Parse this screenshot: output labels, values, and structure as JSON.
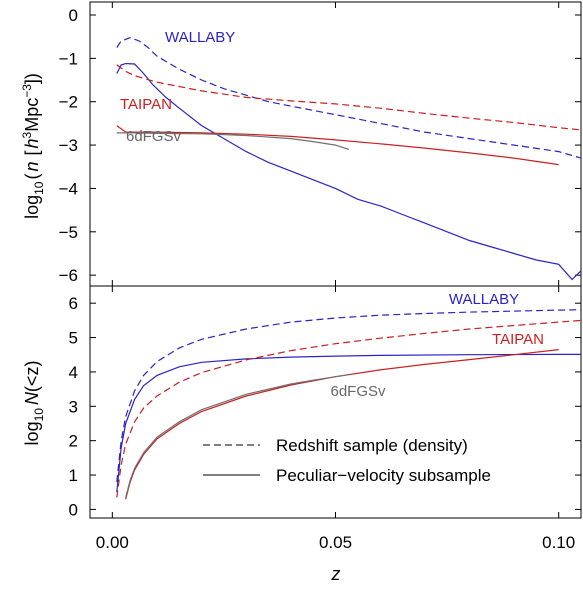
{
  "chart_data": [
    {
      "panel": "top",
      "type": "line",
      "ylabel_parts": {
        "base": "log",
        "sub": "10",
        "open": "(",
        "var": "n",
        "bracket_open": "[",
        "hvar": "h",
        "hexp": "3",
        "unit": "Mpc",
        "uexp": "−3",
        "close": "])"
      },
      "xlim": [
        -0.005,
        0.105
      ],
      "ylim": [
        -6.25,
        0.3
      ],
      "yticks": [
        "0",
        "−1",
        "−2",
        "−3",
        "−4",
        "−5",
        "−6"
      ],
      "ytick_values": [
        0,
        -1,
        -2,
        -3,
        -4,
        -5,
        -6
      ],
      "labels": {
        "wallaby": "WALLABY",
        "taipan": "TAIPAN",
        "sixdf": "6dFGSv"
      },
      "series": [
        {
          "key": "wallaby_redshift",
          "color": "#2a24c8",
          "dashed": true,
          "x": [
            0.001,
            0.002,
            0.004,
            0.006,
            0.008,
            0.01,
            0.015,
            0.02,
            0.025,
            0.03,
            0.035,
            0.04,
            0.05,
            0.06,
            0.07,
            0.08,
            0.09,
            0.1,
            0.105
          ],
          "y": [
            -0.75,
            -0.6,
            -0.52,
            -0.6,
            -0.75,
            -0.95,
            -1.25,
            -1.5,
            -1.7,
            -1.85,
            -2.0,
            -2.1,
            -2.3,
            -2.5,
            -2.7,
            -2.85,
            -3.0,
            -3.15,
            -3.3
          ]
        },
        {
          "key": "wallaby_pv",
          "color": "#2a24c8",
          "dashed": false,
          "x": [
            0.001,
            0.002,
            0.003,
            0.005,
            0.007,
            0.009,
            0.012,
            0.015,
            0.02,
            0.025,
            0.03,
            0.035,
            0.04,
            0.045,
            0.05,
            0.055,
            0.06,
            0.065,
            0.07,
            0.075,
            0.08,
            0.085,
            0.09,
            0.095,
            0.1,
            0.103,
            0.105
          ],
          "y": [
            -1.35,
            -1.15,
            -1.12,
            -1.13,
            -1.35,
            -1.6,
            -1.9,
            -2.15,
            -2.55,
            -2.85,
            -3.15,
            -3.4,
            -3.6,
            -3.8,
            -4.0,
            -4.25,
            -4.4,
            -4.6,
            -4.8,
            -5.0,
            -5.2,
            -5.35,
            -5.5,
            -5.65,
            -5.75,
            -6.1,
            -5.9
          ]
        },
        {
          "key": "taipan_redshift",
          "color": "#cc1f1f",
          "dashed": true,
          "x": [
            0.001,
            0.003,
            0.005,
            0.01,
            0.02,
            0.03,
            0.04,
            0.05,
            0.06,
            0.07,
            0.08,
            0.09,
            0.1,
            0.105
          ],
          "y": [
            -1.15,
            -1.3,
            -1.4,
            -1.55,
            -1.75,
            -1.9,
            -1.98,
            -2.05,
            -2.15,
            -2.27,
            -2.38,
            -2.48,
            -2.6,
            -2.65
          ]
        },
        {
          "key": "taipan_pv",
          "color": "#cc1f1f",
          "dashed": false,
          "x": [
            0.001,
            0.003,
            0.006,
            0.01,
            0.02,
            0.03,
            0.04,
            0.05,
            0.06,
            0.07,
            0.08,
            0.09,
            0.1
          ],
          "y": [
            -2.55,
            -2.7,
            -2.7,
            -2.7,
            -2.72,
            -2.75,
            -2.8,
            -2.88,
            -2.97,
            -3.07,
            -3.18,
            -3.3,
            -3.45
          ]
        },
        {
          "key": "sixdf_pv",
          "color": "#707070",
          "dashed": false,
          "x": [
            0.001,
            0.005,
            0.01,
            0.02,
            0.03,
            0.04,
            0.045,
            0.05,
            0.053
          ],
          "y": [
            -2.72,
            -2.72,
            -2.73,
            -2.74,
            -2.78,
            -2.85,
            -2.92,
            -3.0,
            -3.1
          ]
        }
      ]
    },
    {
      "panel": "bottom",
      "type": "line",
      "ylabel_parts": {
        "base": "log",
        "sub": "10",
        "var": "N",
        "rest": "(<z)"
      },
      "xlabel": "z",
      "xlim": [
        -0.005,
        0.105
      ],
      "ylim": [
        -0.25,
        6.5
      ],
      "xticks": [
        "0.00",
        "0.05",
        "0.10"
      ],
      "xtick_values": [
        0.0,
        0.05,
        0.1
      ],
      "yticks": [
        "0",
        "1",
        "2",
        "3",
        "4",
        "5",
        "6"
      ],
      "ytick_values": [
        0,
        1,
        2,
        3,
        4,
        5,
        6
      ],
      "labels": {
        "wallaby": "WALLABY",
        "taipan": "TAIPAN",
        "sixdf": "6dFGSv"
      },
      "legend": {
        "redshift": "Redshift sample (density)",
        "pv": "Peculiar−velocity subsample"
      },
      "series": [
        {
          "key": "wallaby_redshift",
          "color": "#2a24c8",
          "dashed": true,
          "x": [
            0.001,
            0.002,
            0.003,
            0.005,
            0.007,
            0.01,
            0.015,
            0.02,
            0.03,
            0.04,
            0.05,
            0.06,
            0.07,
            0.08,
            0.09,
            0.1,
            0.105
          ],
          "y": [
            0.8,
            2.0,
            2.7,
            3.45,
            3.9,
            4.3,
            4.7,
            4.95,
            5.25,
            5.45,
            5.57,
            5.65,
            5.7,
            5.74,
            5.77,
            5.8,
            5.81
          ]
        },
        {
          "key": "wallaby_pv",
          "color": "#2a24c8",
          "dashed": false,
          "x": [
            0.001,
            0.002,
            0.003,
            0.005,
            0.007,
            0.01,
            0.015,
            0.02,
            0.03,
            0.04,
            0.05,
            0.06,
            0.08,
            0.1,
            0.105
          ],
          "y": [
            0.5,
            1.8,
            2.5,
            3.2,
            3.6,
            3.9,
            4.15,
            4.28,
            4.38,
            4.43,
            4.46,
            4.48,
            4.5,
            4.51,
            4.51
          ]
        },
        {
          "key": "taipan_redshift",
          "color": "#cc1f1f",
          "dashed": true,
          "x": [
            0.001,
            0.002,
            0.003,
            0.005,
            0.007,
            0.01,
            0.015,
            0.02,
            0.03,
            0.04,
            0.05,
            0.06,
            0.07,
            0.08,
            0.09,
            0.1,
            0.105
          ],
          "y": [
            0.35,
            1.3,
            1.9,
            2.55,
            2.95,
            3.3,
            3.7,
            3.98,
            4.35,
            4.62,
            4.82,
            4.98,
            5.12,
            5.25,
            5.35,
            5.45,
            5.5
          ]
        },
        {
          "key": "taipan_pv",
          "color": "#cc1f1f",
          "dashed": false,
          "x": [
            0.003,
            0.004,
            0.005,
            0.007,
            0.01,
            0.015,
            0.02,
            0.03,
            0.04,
            0.05,
            0.06,
            0.07,
            0.08,
            0.09,
            0.1
          ],
          "y": [
            0.3,
            0.8,
            1.15,
            1.6,
            2.05,
            2.5,
            2.85,
            3.3,
            3.62,
            3.86,
            4.06,
            4.22,
            4.36,
            4.5,
            4.65
          ]
        },
        {
          "key": "sixdf_pv",
          "color": "#707070",
          "dashed": false,
          "x": [
            0.003,
            0.004,
            0.005,
            0.007,
            0.01,
            0.015,
            0.02,
            0.03,
            0.04,
            0.045,
            0.05,
            0.053
          ],
          "y": [
            0.35,
            0.85,
            1.2,
            1.65,
            2.1,
            2.55,
            2.9,
            3.35,
            3.65,
            3.76,
            3.86,
            3.92
          ]
        }
      ]
    }
  ]
}
